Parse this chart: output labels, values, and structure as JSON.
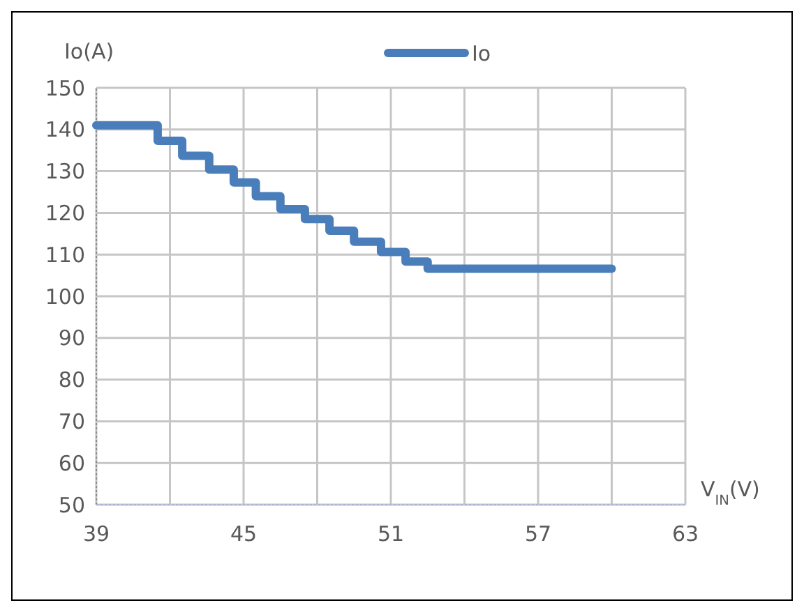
{
  "chart_data": {
    "type": "step",
    "ylabel": "Io(A)",
    "xlabel": "V$_{IN}$(V)",
    "legend": "top",
    "series": [
      {
        "name": "Io",
        "color": "#4a7ebb",
        "x": [
          39,
          41.5,
          42.5,
          43.6,
          44.6,
          45.5,
          46.5,
          47.5,
          48.5,
          49.5,
          50.6,
          51.6,
          52.5,
          60
        ],
        "values": [
          141,
          137.3,
          133.7,
          130.4,
          127.3,
          124,
          120.9,
          118.5,
          115.7,
          113.1,
          110.6,
          108.3,
          106.6,
          106.6
        ]
      }
    ],
    "xlim": [
      39,
      63
    ],
    "xticks": [
      39,
      {
        "value": 42,
        "label": null
      },
      45,
      {
        "value": 48,
        "label": null
      },
      51,
      {
        "value": 54,
        "label": null
      },
      57,
      {
        "value": 60,
        "label": null
      },
      63
    ],
    "ylim": [
      50,
      150
    ],
    "yticks": [
      50,
      60,
      70,
      80,
      90,
      100,
      110,
      120,
      130,
      140,
      150
    ],
    "grid": true
  }
}
